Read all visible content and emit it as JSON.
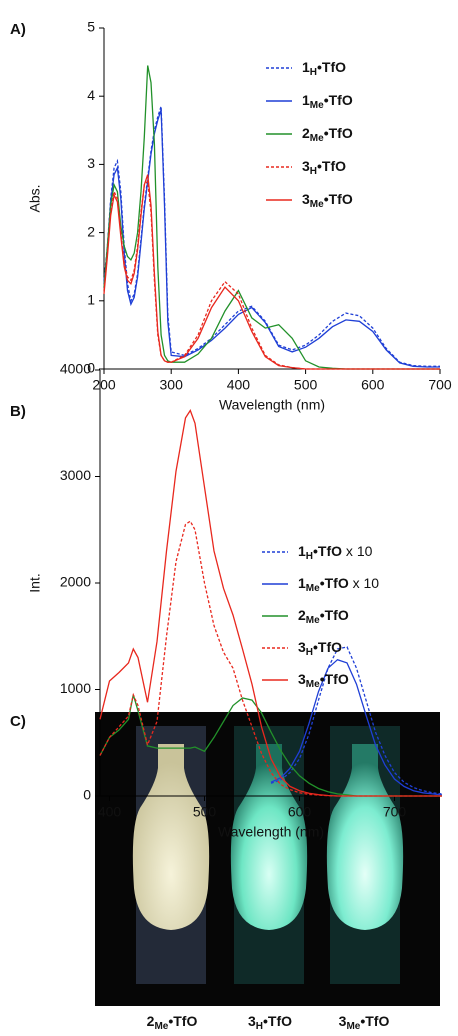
{
  "chart_data": [
    {
      "type": "line",
      "panel_label": "A)",
      "x_label": "Wavelength (nm)",
      "y_label": "Abs.",
      "x": [
        200,
        205,
        210,
        215,
        220,
        225,
        230,
        235,
        240,
        245,
        250,
        255,
        260,
        265,
        270,
        275,
        280,
        285,
        290,
        295,
        300,
        320,
        340,
        360,
        380,
        400,
        420,
        440,
        460,
        480,
        500,
        520,
        540,
        560,
        580,
        600,
        620,
        640,
        660,
        680,
        700
      ],
      "xlim": [
        200,
        700
      ],
      "xticks": [
        200,
        300,
        400,
        500,
        600,
        700
      ],
      "ylim": [
        0,
        5
      ],
      "yticks": [
        0,
        1,
        2,
        3,
        4,
        5
      ],
      "series": [
        {
          "name": "1H•TfO",
          "color": "#1f3fd6",
          "dashed": true,
          "values": [
            1.3,
            1.8,
            2.5,
            2.95,
            3.05,
            2.6,
            1.8,
            1.25,
            1.0,
            1.1,
            1.4,
            1.9,
            2.4,
            2.8,
            3.2,
            3.5,
            3.7,
            3.85,
            2.5,
            0.8,
            0.25,
            0.2,
            0.3,
            0.45,
            0.65,
            0.85,
            0.92,
            0.7,
            0.35,
            0.28,
            0.35,
            0.5,
            0.7,
            0.82,
            0.78,
            0.6,
            0.3,
            0.1,
            0.05,
            0.04,
            0.04
          ]
        },
        {
          "name": "1Me•TfO",
          "color": "#1f3fd6",
          "dashed": false,
          "values": [
            1.25,
            1.75,
            2.45,
            2.85,
            2.95,
            2.5,
            1.7,
            1.15,
            0.95,
            1.05,
            1.35,
            1.85,
            2.35,
            2.75,
            3.15,
            3.45,
            3.65,
            3.8,
            2.4,
            0.7,
            0.2,
            0.18,
            0.28,
            0.42,
            0.6,
            0.8,
            0.9,
            0.68,
            0.33,
            0.25,
            0.32,
            0.45,
            0.62,
            0.72,
            0.7,
            0.55,
            0.28,
            0.09,
            0.04,
            0.03,
            0.03
          ]
        },
        {
          "name": "2Me•TfO",
          "color": "#22912a",
          "dashed": false,
          "values": [
            1.2,
            1.8,
            2.4,
            2.7,
            2.6,
            2.1,
            1.8,
            1.65,
            1.6,
            1.7,
            2.0,
            2.6,
            3.4,
            4.45,
            4.2,
            3.3,
            1.5,
            0.5,
            0.2,
            0.12,
            0.1,
            0.1,
            0.22,
            0.45,
            0.85,
            1.15,
            0.75,
            0.6,
            0.65,
            0.45,
            0.12,
            0.03,
            0.01,
            0,
            0,
            0,
            0,
            0,
            0,
            0,
            0
          ]
        },
        {
          "name": "3H•TfO",
          "color": "#e8281e",
          "dashed": true,
          "values": [
            1.15,
            1.7,
            2.3,
            2.6,
            2.5,
            2.0,
            1.55,
            1.35,
            1.3,
            1.45,
            1.8,
            2.3,
            2.7,
            2.75,
            2.3,
            1.3,
            0.5,
            0.2,
            0.12,
            0.1,
            0.1,
            0.2,
            0.5,
            1.0,
            1.28,
            1.1,
            0.6,
            0.2,
            0.06,
            0.02,
            0,
            0,
            0,
            0,
            0,
            0,
            0,
            0,
            0,
            0,
            0
          ]
        },
        {
          "name": "3Me•TfO",
          "color": "#e8281e",
          "dashed": false,
          "values": [
            1.1,
            1.65,
            2.25,
            2.55,
            2.45,
            1.95,
            1.5,
            1.3,
            1.25,
            1.4,
            1.75,
            2.25,
            2.7,
            2.85,
            2.4,
            1.4,
            0.55,
            0.2,
            0.12,
            0.1,
            0.1,
            0.18,
            0.45,
            0.9,
            1.2,
            1.0,
            0.55,
            0.18,
            0.05,
            0.02,
            0,
            0,
            0,
            0,
            0,
            0,
            0,
            0,
            0,
            0,
            0
          ]
        }
      ]
    },
    {
      "type": "line",
      "panel_label": "B)",
      "x_label": "Wavelength (nm)",
      "y_label": "Int.",
      "x": [
        390,
        400,
        410,
        420,
        425,
        430,
        440,
        450,
        460,
        470,
        480,
        485,
        490,
        500,
        510,
        520,
        530,
        540,
        550,
        560,
        570,
        580,
        590,
        600,
        610,
        620,
        630,
        640,
        650,
        660,
        670,
        680,
        690,
        700,
        710,
        720,
        730,
        740,
        750
      ],
      "xlim": [
        390,
        750
      ],
      "xticks": [
        400,
        500,
        600,
        700
      ],
      "ylim": [
        0,
        4000
      ],
      "yticks": [
        0,
        1000,
        2000,
        3000,
        4000
      ],
      "series": [
        {
          "name": "1H•TfO x 10",
          "color": "#1f3fd6",
          "dashed": true,
          "values": [
            null,
            null,
            null,
            null,
            null,
            null,
            null,
            null,
            null,
            null,
            null,
            null,
            null,
            null,
            null,
            null,
            null,
            null,
            null,
            null,
            120,
            150,
            220,
            350,
            580,
            900,
            1200,
            1380,
            1400,
            1200,
            900,
            600,
            380,
            220,
            130,
            80,
            50,
            30,
            20
          ]
        },
        {
          "name": "1Me•TfO x 10",
          "color": "#1f3fd6",
          "dashed": false,
          "values": [
            null,
            null,
            null,
            null,
            null,
            null,
            null,
            null,
            null,
            null,
            null,
            null,
            null,
            null,
            null,
            null,
            null,
            null,
            null,
            null,
            130,
            170,
            260,
            420,
            680,
            980,
            1200,
            1280,
            1250,
            1050,
            760,
            480,
            290,
            160,
            90,
            50,
            30,
            20,
            10
          ]
        },
        {
          "name": "2Me•TfO",
          "color": "#22912a",
          "dashed": false,
          "values": [
            380,
            550,
            620,
            720,
            950,
            800,
            470,
            450,
            450,
            450,
            450,
            450,
            460,
            420,
            550,
            700,
            850,
            920,
            900,
            780,
            600,
            430,
            290,
            190,
            120,
            70,
            40,
            20,
            10,
            0,
            0,
            0,
            0,
            0,
            0,
            0,
            0,
            0,
            0
          ]
        },
        {
          "name": "3H•TfO",
          "color": "#e8281e",
          "dashed": true,
          "values": [
            380,
            550,
            650,
            750,
            950,
            850,
            480,
            700,
            1500,
            2200,
            2550,
            2580,
            2500,
            2000,
            1600,
            1350,
            1200,
            900,
            650,
            400,
            220,
            110,
            60,
            30,
            15,
            8,
            3,
            0,
            0,
            0,
            0,
            0,
            0,
            0,
            0,
            0,
            0,
            0,
            0
          ]
        },
        {
          "name": "3Me•TfO",
          "color": "#e8281e",
          "dashed": false,
          "values": [
            720,
            1080,
            1160,
            1250,
            1380,
            1300,
            880,
            1450,
            2300,
            3050,
            3550,
            3620,
            3500,
            2900,
            2300,
            1950,
            1700,
            1380,
            1050,
            650,
            350,
            180,
            90,
            50,
            25,
            12,
            5,
            0,
            0,
            0,
            0,
            0,
            0,
            0,
            0,
            0,
            0,
            0,
            0
          ]
        }
      ]
    }
  ],
  "photo": {
    "panel_label": "C)",
    "captions": [
      "2Me•TfO",
      "3H•TfO",
      "3Me•TfO"
    ]
  }
}
